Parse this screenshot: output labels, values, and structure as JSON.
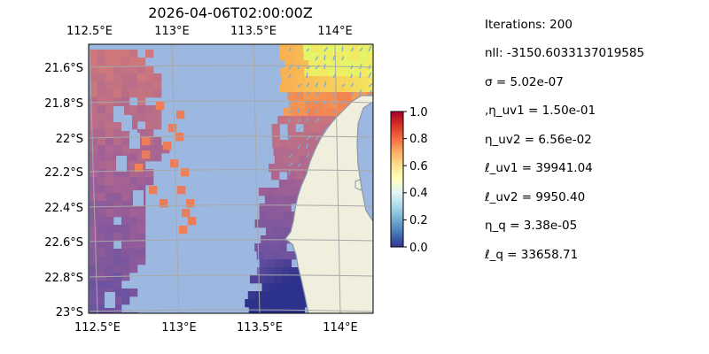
{
  "title": "2026-04-06T02:00:00Z",
  "map": {
    "lon_ticks": [
      "112.5°E",
      "113°E",
      "113.5°E",
      "114°E"
    ],
    "lat_ticks": [
      "21.6°S",
      "21.8°S",
      "22°S",
      "22.2°S",
      "22.4°S",
      "22.6°S",
      "22.8°S",
      "23°S"
    ],
    "lon_range": [
      112.5,
      114.2
    ],
    "lat_range": [
      -23.02,
      -21.47
    ],
    "colors": {
      "ocean": "#9cb8e0",
      "land": "#f0eedc",
      "coast": "#8a97a8",
      "grid": "#a8a8a8",
      "arrows": "#7fa9cf"
    }
  },
  "colorbar": {
    "colormap": "RdYlBu_r",
    "ticks": [
      "0.0",
      "0.2",
      "0.4",
      "0.6",
      "0.8",
      "1.0"
    ],
    "range": [
      0,
      1
    ]
  },
  "stats": [
    "Iterations: 200",
    "nll: -3150.6033137019585",
    "σ = 5.02e-07",
    ",η_uv1 = 1.50e-01",
    "η_uv2 = 6.56e-02",
    "ℓ_uv1 = 39941.04",
    "ℓ_uv2 = 9950.40",
    "η_q = 3.38e-05",
    "ℓ_q = 33658.71"
  ]
}
